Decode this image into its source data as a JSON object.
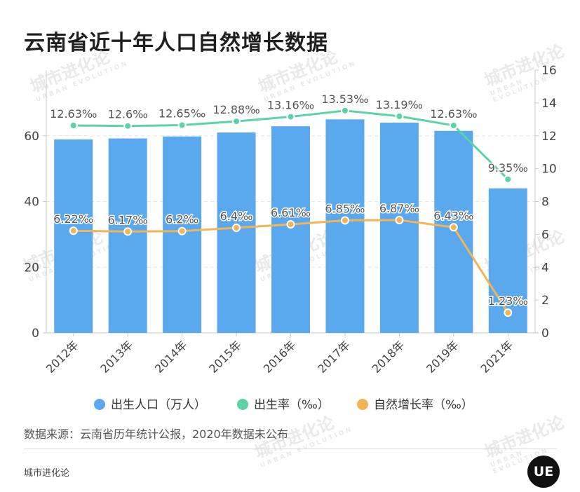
{
  "title": "云南省近十年人口自然增长数据",
  "watermark": {
    "text": "城市进化论",
    "subtext": "URBAN EVOLUTION"
  },
  "source": "数据来源：云南省历年统计公报，2020年数据未公布",
  "brand": "城市进化论",
  "logo_text": "UE",
  "colors": {
    "bars": "#5aa9ee",
    "birth_rate": "#5bd3a6",
    "growth_rate": "#f2b455",
    "grid": "#e6e6e6",
    "axis": "#c8c8c8",
    "text": "#444444"
  },
  "chart_data": {
    "type": "bar",
    "categories": [
      "2012年",
      "2013年",
      "2014年",
      "2015年",
      "2016年",
      "2017年",
      "2018年",
      "2019年",
      "2021年"
    ],
    "left_axis": {
      "ylim": [
        0,
        80
      ],
      "ticks": [
        0,
        20,
        40,
        60
      ]
    },
    "right_axis": {
      "ylim": [
        0,
        16
      ],
      "ticks": [
        0,
        2,
        4,
        6,
        8,
        10,
        12,
        14,
        16
      ]
    },
    "grid": true,
    "legend_position": "bottom",
    "series": [
      {
        "name": "出生人口（万人）",
        "type": "bar",
        "axis": "left",
        "values": [
          58.9,
          59.2,
          59.8,
          61.0,
          62.9,
          65.0,
          64.0,
          61.5,
          44.0
        ]
      },
      {
        "name": "出生率（‰）",
        "type": "line",
        "axis": "right",
        "values": [
          12.63,
          12.6,
          12.65,
          12.88,
          13.16,
          13.53,
          13.19,
          12.63,
          9.35
        ],
        "labels": [
          "12.63‰",
          "12.6‰",
          "12.65‰",
          "12.88‰",
          "13.16‰",
          "13.53‰",
          "13.19‰",
          "12.63‰",
          "9.35‰"
        ]
      },
      {
        "name": "自然增长率（‰）",
        "type": "line",
        "axis": "right",
        "values": [
          6.22,
          6.17,
          6.2,
          6.4,
          6.61,
          6.85,
          6.87,
          6.43,
          1.23
        ],
        "labels": [
          "6.22‰",
          "6.17‰",
          "6.2‰",
          "6.4‰",
          "6.61‰",
          "6.85‰",
          "6.87‰",
          "6.43‰",
          "1.23‰"
        ]
      }
    ]
  }
}
